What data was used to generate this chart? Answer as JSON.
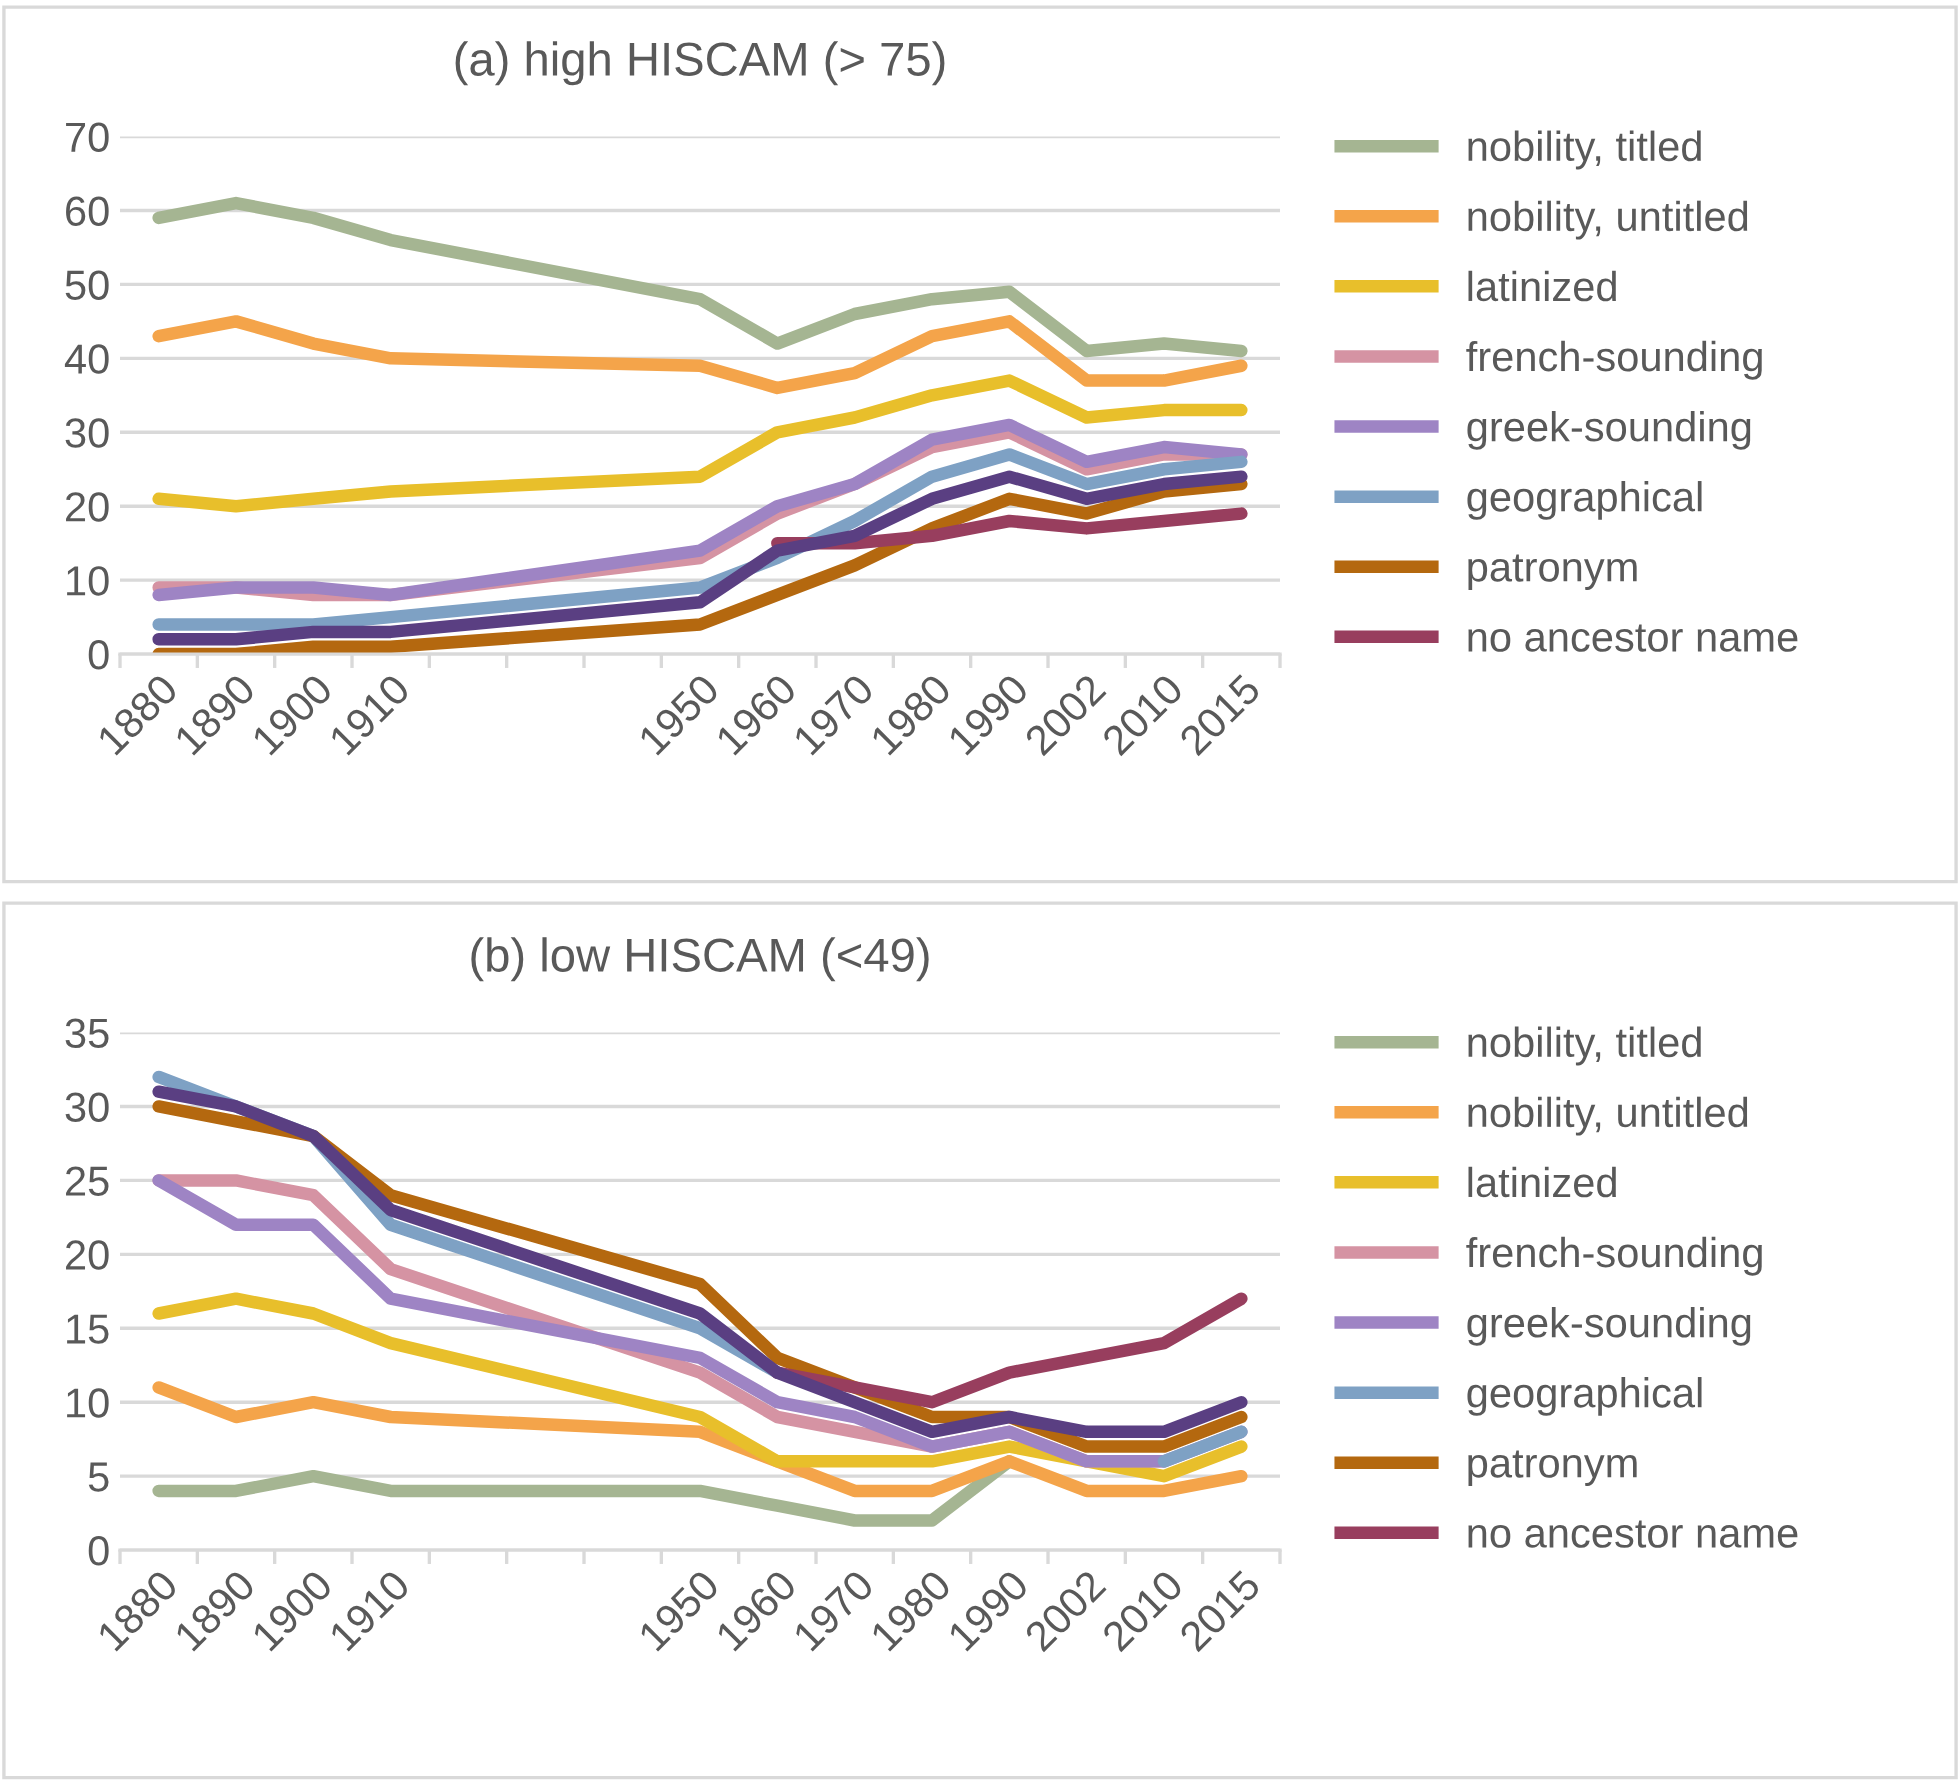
{
  "chart_data": [
    {
      "type": "line",
      "title": "(a) high HISCAM (> 75)",
      "categories": [
        "1880",
        "1890",
        "1900",
        "1910",
        null,
        null,
        null,
        "1950",
        "1960",
        "1970",
        "1980",
        "1990",
        "2002",
        "2010",
        "2015"
      ],
      "ylim": [
        0,
        70
      ],
      "yticks": [
        0,
        10,
        20,
        30,
        40,
        50,
        60,
        70
      ],
      "grid": "y",
      "legend": "right",
      "marker": "none",
      "line_style": "solid",
      "series": [
        {
          "name": "nobility, titled",
          "color": "#a5b592",
          "values": [
            59,
            61,
            59,
            56,
            null,
            null,
            null,
            48,
            42,
            46,
            48,
            49,
            41,
            42,
            41
          ]
        },
        {
          "name": "nobility, untitled",
          "color": "#f4a44a",
          "values": [
            43,
            45,
            42,
            40,
            null,
            null,
            null,
            39,
            36,
            38,
            43,
            45,
            37,
            37,
            39
          ]
        },
        {
          "name": "latinized",
          "color": "#e8bf2b",
          "values": [
            21,
            20,
            21,
            22,
            null,
            null,
            null,
            24,
            30,
            32,
            35,
            37,
            32,
            33,
            33
          ]
        },
        {
          "name": "french-sounding",
          "color": "#d593a3",
          "values": [
            9,
            9,
            8,
            8,
            null,
            null,
            null,
            13,
            19,
            23,
            28,
            30,
            25,
            27,
            27
          ]
        },
        {
          "name": "greek-sounding",
          "color": "#9e84c4",
          "values": [
            8,
            9,
            9,
            8,
            null,
            null,
            null,
            14,
            20,
            23,
            29,
            31,
            26,
            28,
            27
          ]
        },
        {
          "name": "geographical",
          "color": "#7ea1c4",
          "values": [
            4,
            4,
            4,
            5,
            null,
            null,
            null,
            9,
            13,
            18,
            24,
            27,
            23,
            25,
            26
          ]
        },
        {
          "name": "patronym",
          "color": "#b4680f",
          "values": [
            0,
            0,
            1,
            1,
            null,
            null,
            null,
            4,
            8,
            12,
            17,
            21,
            19,
            22,
            23
          ]
        },
        {
          "name": "no ancestor name",
          "color": "#983e5e",
          "values": [
            null,
            null,
            null,
            null,
            null,
            null,
            null,
            null,
            15,
            15,
            16,
            18,
            17,
            18,
            19
          ]
        },
        {
          "color": "#5a3f82",
          "values": [
            2,
            2,
            3,
            3,
            null,
            null,
            null,
            7,
            14,
            16,
            21,
            24,
            21,
            23,
            24
          ]
        }
      ]
    },
    {
      "type": "line",
      "title": "(b) low HISCAM (<49)",
      "categories": [
        "1880",
        "1890",
        "1900",
        "1910",
        null,
        null,
        null,
        "1950",
        "1960",
        "1970",
        "1980",
        "1990",
        "2002",
        "2010",
        "2015"
      ],
      "ylim": [
        0,
        35
      ],
      "yticks": [
        0,
        5,
        10,
        15,
        20,
        25,
        30,
        35
      ],
      "grid": "y",
      "legend": "right",
      "marker": "none",
      "line_style": "solid",
      "series": [
        {
          "name": "nobility, titled",
          "color": "#a5b592",
          "values": [
            4,
            4,
            5,
            4,
            null,
            null,
            null,
            4,
            3,
            2,
            2,
            6,
            null,
            null,
            null
          ]
        },
        {
          "name": "nobility, untitled",
          "color": "#f4a44a",
          "values": [
            11,
            9,
            10,
            9,
            null,
            null,
            null,
            8,
            6,
            4,
            4,
            6,
            4,
            4,
            5
          ]
        },
        {
          "name": "latinized",
          "color": "#e8bf2b",
          "values": [
            16,
            17,
            16,
            14,
            null,
            null,
            null,
            9,
            6,
            6,
            6,
            7,
            6,
            5,
            7
          ]
        },
        {
          "name": "french-sounding",
          "color": "#d593a3",
          "values": [
            25,
            25,
            24,
            19,
            null,
            null,
            null,
            12,
            9,
            8,
            7,
            8,
            6,
            6,
            null
          ]
        },
        {
          "name": "greek-sounding",
          "color": "#9e84c4",
          "values": [
            25,
            22,
            22,
            17,
            null,
            null,
            null,
            13,
            10,
            9,
            7,
            8,
            6,
            6,
            8
          ]
        },
        {
          "name": "geographical",
          "color": "#7ea1c4",
          "values": [
            32,
            30,
            28,
            22,
            null,
            null,
            null,
            15,
            12,
            null,
            null,
            null,
            null,
            6,
            8
          ]
        },
        {
          "name": "patronym",
          "color": "#b4680f",
          "values": [
            30,
            29,
            28,
            24,
            null,
            null,
            null,
            18,
            13,
            11,
            9,
            9,
            7,
            7,
            9
          ]
        },
        {
          "name": "no ancestor name",
          "color": "#983e5e",
          "values": [
            null,
            null,
            null,
            null,
            null,
            null,
            null,
            null,
            12,
            11,
            10,
            12,
            13,
            14,
            17
          ]
        },
        {
          "color": "#5a3f82",
          "values": [
            31,
            30,
            28,
            23,
            null,
            null,
            null,
            16,
            12,
            10,
            8,
            9,
            8,
            8,
            10
          ]
        }
      ]
    }
  ]
}
